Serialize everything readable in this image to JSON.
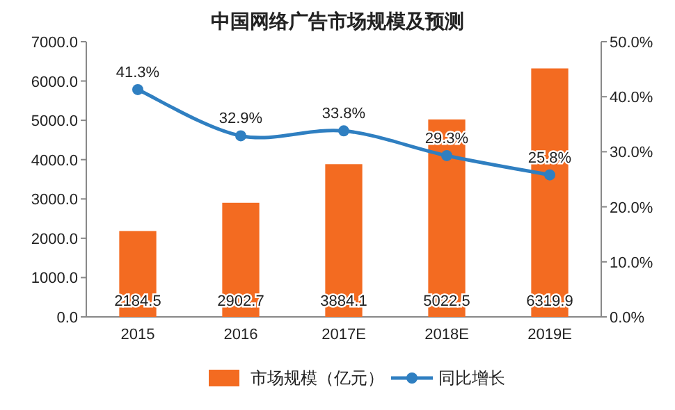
{
  "chart_data": {
    "type": "bar",
    "title": "中国网络广告市场规模及预测",
    "categories": [
      "2015",
      "2016",
      "2017E",
      "2018E",
      "2019E"
    ],
    "series": [
      {
        "name": "市场规模（亿元）",
        "color": "#f36b21",
        "values": [
          2184.5,
          2902.7,
          3884.1,
          5022.5,
          6319.9
        ],
        "value_labels": [
          "2184.5",
          "2902.7",
          "3884.1",
          "5022.5",
          "6319.9"
        ]
      },
      {
        "name": "同比增长",
        "type": "line",
        "axis": "y2",
        "color": "#2f7fc1",
        "marker": "circle",
        "values": [
          41.3,
          32.9,
          33.8,
          29.3,
          25.8
        ],
        "value_labels": [
          "41.3%",
          "32.9%",
          "33.8%",
          "29.3%",
          "25.8%"
        ]
      }
    ],
    "ylim": [
      0,
      7000
    ],
    "yticks": [
      {
        "value": 0,
        "label": "0.0"
      },
      {
        "value": 1000,
        "label": "1000.0"
      },
      {
        "value": 2000,
        "label": "2000.0"
      },
      {
        "value": 3000,
        "label": "3000.0"
      },
      {
        "value": 4000,
        "label": "4000.0"
      },
      {
        "value": 5000,
        "label": "5000.0"
      },
      {
        "value": 6000,
        "label": "6000.0"
      },
      {
        "value": 7000,
        "label": "7000.0"
      }
    ],
    "y2lim": [
      0,
      50
    ],
    "y2ticks": [
      {
        "value": 0,
        "label": "0.0%"
      },
      {
        "value": 10,
        "label": "10.0%"
      },
      {
        "value": 20,
        "label": "20.0%"
      },
      {
        "value": 30,
        "label": "30.0%"
      },
      {
        "value": 40,
        "label": "40.0%"
      },
      {
        "value": 50,
        "label": "50.0%"
      }
    ],
    "legend": "bottom"
  }
}
